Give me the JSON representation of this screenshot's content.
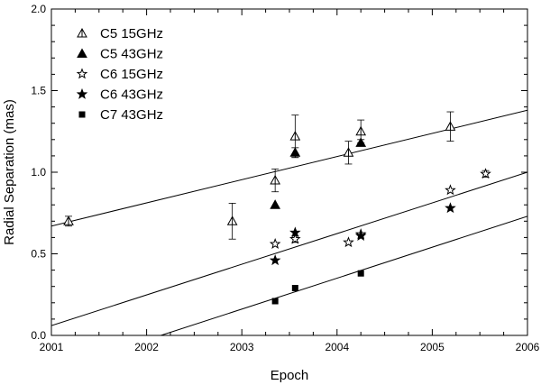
{
  "chart_data": {
    "type": "scatter",
    "title": "",
    "xlabel": "Epoch",
    "ylabel": "Radial Separation (mas)",
    "xlim": [
      2001,
      2006
    ],
    "ylim": [
      0.0,
      2.0
    ],
    "x_ticks": [
      2001,
      2002,
      2003,
      2004,
      2005,
      2006
    ],
    "x_tick_labels": [
      "2001",
      "2002",
      "2003",
      "2004",
      "2005",
      "2006"
    ],
    "y_ticks": [
      0.0,
      0.5,
      1.0,
      1.5,
      2.0
    ],
    "y_tick_labels": [
      "0.0",
      "0.5",
      "1.0",
      "1.5",
      "2.0"
    ],
    "grid": false,
    "legend_position": "top-left",
    "series": [
      {
        "name": "C5 15GHz",
        "marker": "triangle-open",
        "points": [
          {
            "x": 2001.18,
            "y": 0.7,
            "err": 0.03
          },
          {
            "x": 2002.9,
            "y": 0.7,
            "err": 0.11
          },
          {
            "x": 2003.35,
            "y": 0.95,
            "err": 0.07
          },
          {
            "x": 2003.56,
            "y": 1.22,
            "err": 0.13
          },
          {
            "x": 2004.12,
            "y": 1.12,
            "err": 0.07
          },
          {
            "x": 2004.25,
            "y": 1.25,
            "err": 0.07
          },
          {
            "x": 2005.19,
            "y": 1.28,
            "err": 0.09
          }
        ]
      },
      {
        "name": "C5 43GHz",
        "marker": "triangle-filled",
        "points": [
          {
            "x": 2003.35,
            "y": 0.8,
            "err": 0.0
          },
          {
            "x": 2003.56,
            "y": 1.12,
            "err": 0.03
          },
          {
            "x": 2004.25,
            "y": 1.18,
            "err": 0.02
          }
        ]
      },
      {
        "name": "C6 15GHz",
        "marker": "star-open",
        "points": [
          {
            "x": 2003.35,
            "y": 0.56,
            "err": 0.0
          },
          {
            "x": 2003.56,
            "y": 0.59,
            "err": 0.02
          },
          {
            "x": 2004.12,
            "y": 0.57,
            "err": 0.0
          },
          {
            "x": 2004.25,
            "y": 0.62,
            "err": 0.0
          },
          {
            "x": 2005.19,
            "y": 0.89,
            "err": 0.0
          },
          {
            "x": 2005.56,
            "y": 0.99,
            "err": 0.02
          }
        ]
      },
      {
        "name": "C6 43GHz",
        "marker": "star-filled",
        "points": [
          {
            "x": 2003.35,
            "y": 0.46,
            "err": 0.0
          },
          {
            "x": 2003.56,
            "y": 0.63,
            "err": 0.0
          },
          {
            "x": 2004.25,
            "y": 0.61,
            "err": 0.0
          },
          {
            "x": 2005.19,
            "y": 0.78,
            "err": 0.0
          }
        ]
      },
      {
        "name": "C7 43GHz",
        "marker": "square-filled",
        "points": [
          {
            "x": 2003.35,
            "y": 0.21,
            "err": 0.0
          },
          {
            "x": 2003.56,
            "y": 0.29,
            "err": 0.0
          },
          {
            "x": 2004.25,
            "y": 0.38,
            "err": 0.0
          }
        ]
      }
    ],
    "fit_lines": [
      {
        "from": [
          2001.0,
          0.67
        ],
        "to": [
          2006.0,
          1.38
        ]
      },
      {
        "from": [
          2001.0,
          0.06
        ],
        "to": [
          2006.0,
          1.0
        ]
      },
      {
        "from": [
          2002.15,
          0.0
        ],
        "to": [
          2006.0,
          0.73
        ]
      }
    ]
  }
}
